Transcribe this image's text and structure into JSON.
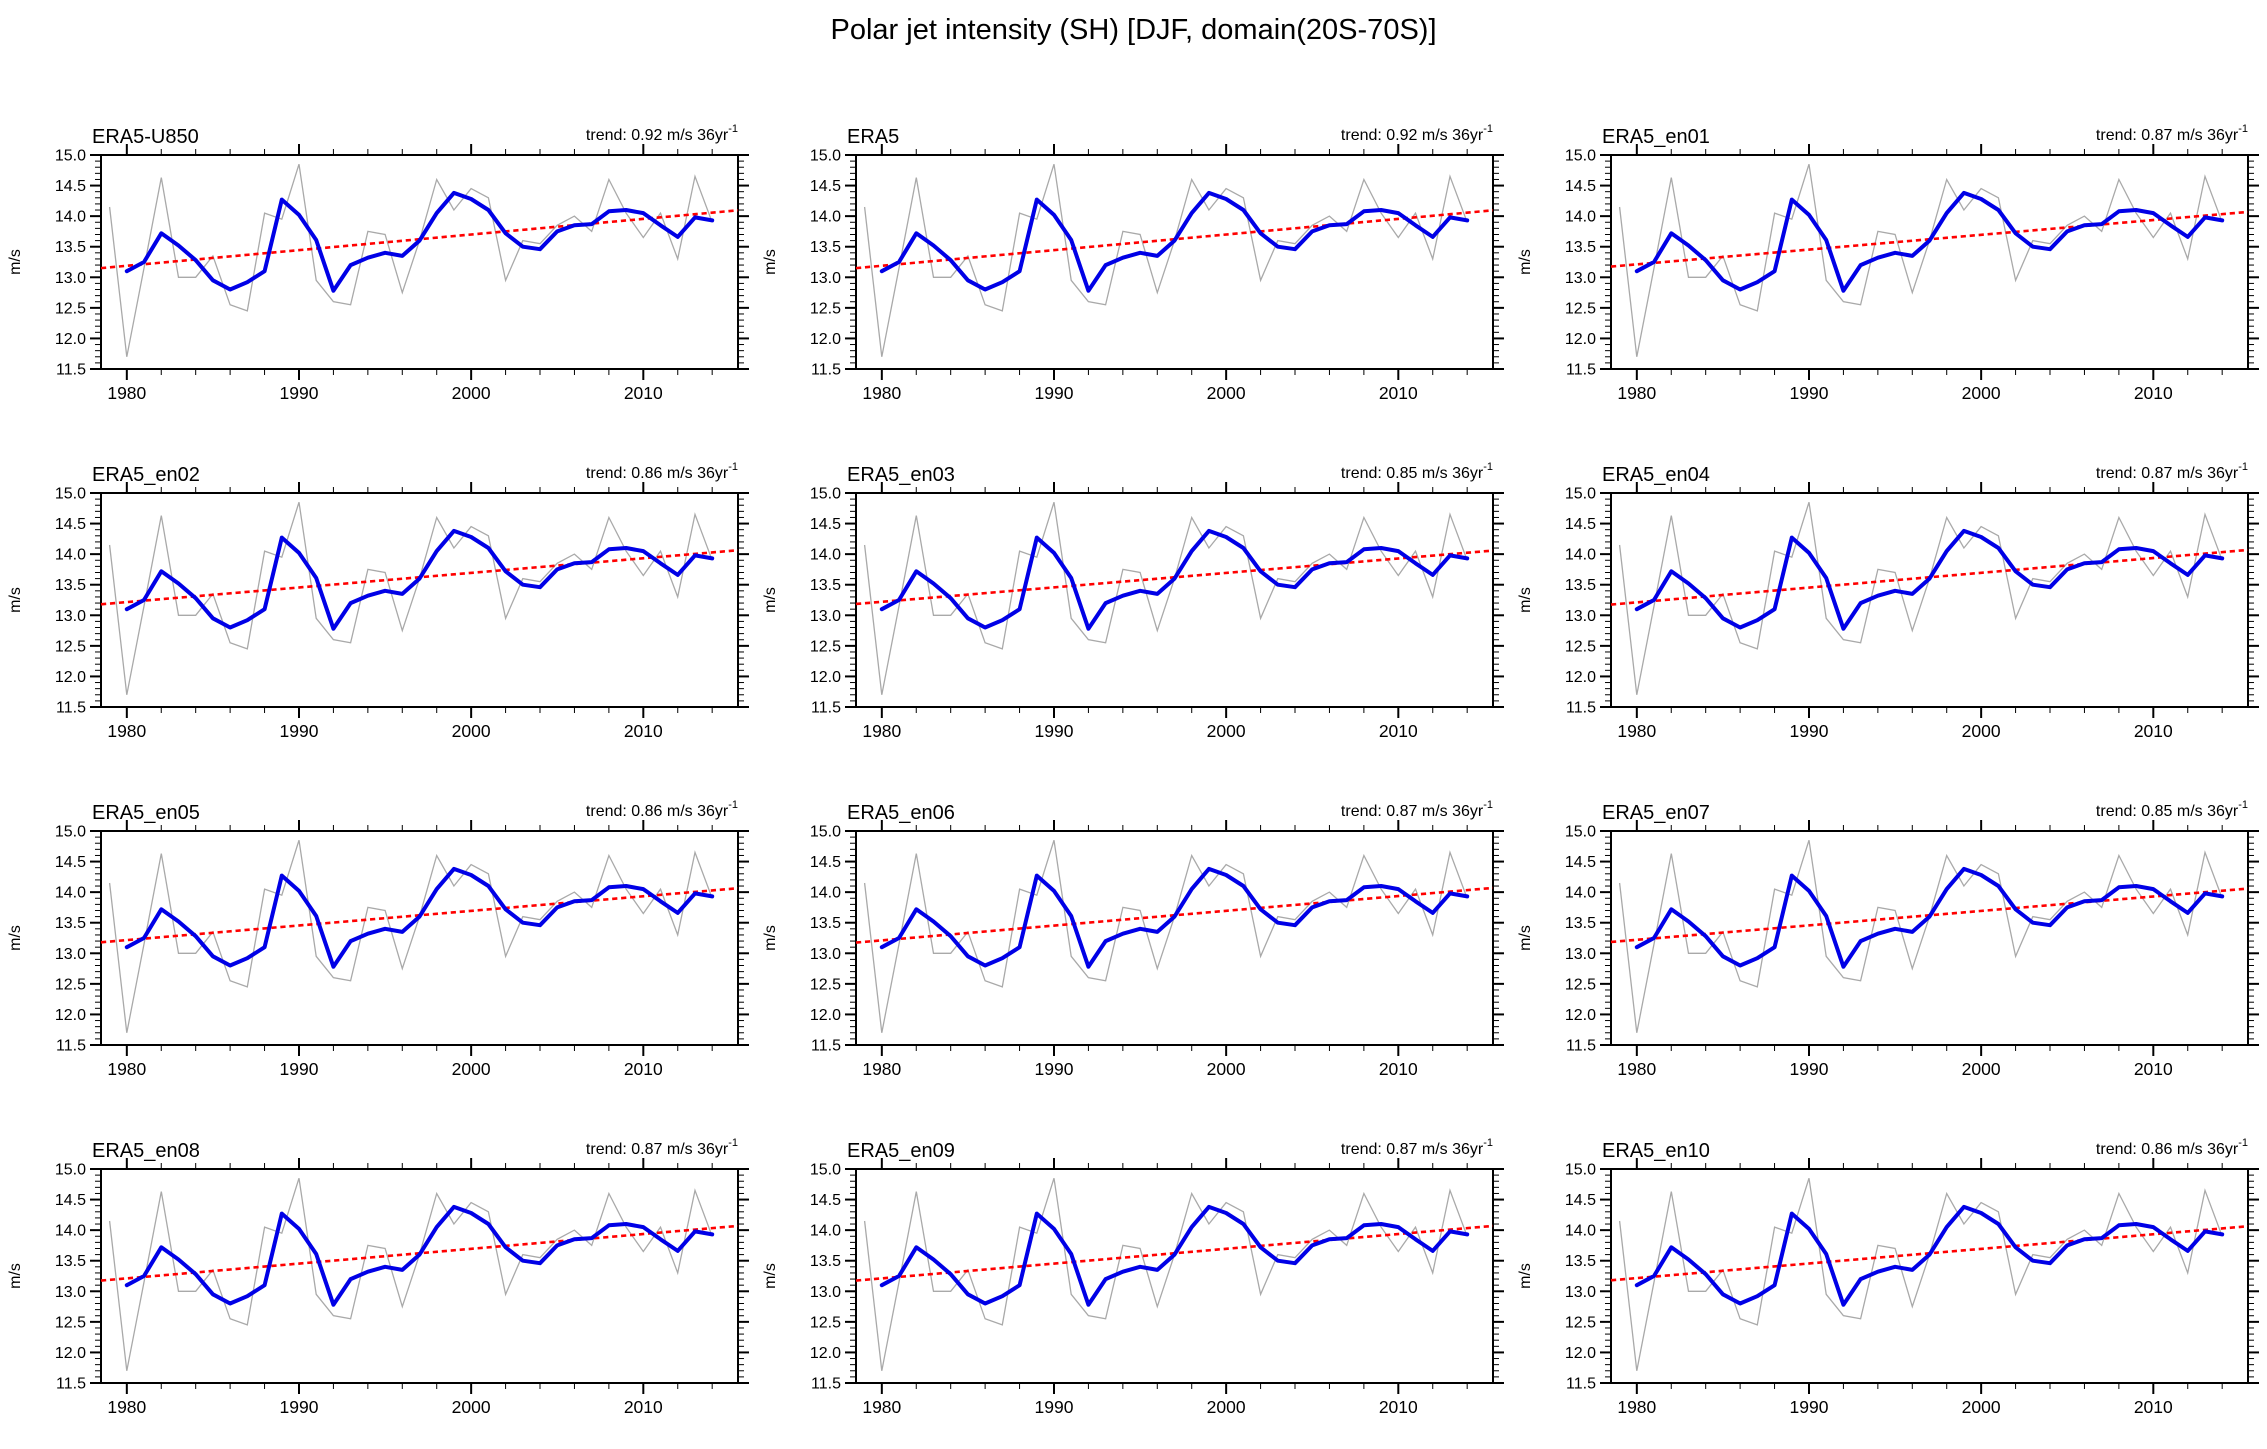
{
  "figure": {
    "title": "Polar jet intensity (SH) [DJF, domain(20S-70S)]"
  },
  "chart_data": {
    "type": "line",
    "layout": {
      "rows": 4,
      "cols": 3
    },
    "suptitle": "Polar jet intensity (SH) [DJF, domain(20S-70S)]",
    "ylabel": "m/s",
    "ylim": [
      11.5,
      15.0
    ],
    "xlim": [
      1978.5,
      2015.5
    ],
    "grid": false,
    "legend": "none",
    "y_major_ticks": [
      11.5,
      12.0,
      12.5,
      13.0,
      13.5,
      14.0,
      14.5,
      15.0
    ],
    "y_tick_labels": [
      "11.5",
      "12.0",
      "12.5",
      "13.0",
      "13.5",
      "14.0",
      "14.5",
      "15.0"
    ],
    "y_minor_step": 0.1,
    "x_major_ticks": [
      1980,
      1990,
      2000,
      2010
    ],
    "x_tick_labels": [
      "1980",
      "1990",
      "2000",
      "2010"
    ],
    "x_minor_step": 2,
    "series_colors": {
      "annual": "#A9A9A9",
      "smoothed": "#0000E6",
      "trend": "#FF0000"
    },
    "series_styles": {
      "annual": "thin solid",
      "smoothed": "thick solid",
      "trend": "dashed"
    },
    "years": [
      1979,
      1980,
      1981,
      1982,
      1983,
      1984,
      1985,
      1986,
      1987,
      1988,
      1989,
      1990,
      1991,
      1992,
      1993,
      1994,
      1995,
      1996,
      1997,
      1998,
      1999,
      2000,
      2001,
      2002,
      2003,
      2004,
      2005,
      2006,
      2007,
      2008,
      2009,
      2010,
      2011,
      2012,
      2013,
      2014
    ],
    "annual_raw": [
      14.15,
      11.7,
      13.15,
      14.63,
      13.0,
      13.0,
      13.35,
      12.55,
      12.45,
      14.05,
      13.95,
      14.85,
      12.95,
      12.6,
      12.55,
      13.75,
      13.7,
      12.75,
      13.6,
      14.6,
      14.1,
      14.45,
      14.3,
      12.95,
      13.6,
      13.55,
      13.85,
      14.0,
      13.75,
      14.6,
      14.05,
      13.65,
      14.05,
      13.3,
      14.65,
      13.9
    ],
    "smoothed_years": [
      1980,
      1981,
      1982,
      1983,
      1984,
      1985,
      1986,
      1987,
      1988,
      1989,
      1990,
      1991,
      1992,
      1993,
      1994,
      1995,
      1996,
      1997,
      1998,
      1999,
      2000,
      2001,
      2002,
      2003,
      2004,
      2005,
      2006,
      2007,
      2008,
      2009,
      2010,
      2011,
      2012,
      2013,
      2014
    ],
    "smoothed": [
      13.1,
      13.25,
      13.72,
      13.52,
      13.28,
      12.95,
      12.8,
      12.92,
      13.1,
      14.27,
      14.02,
      13.61,
      12.78,
      13.2,
      13.32,
      13.4,
      13.35,
      13.6,
      14.05,
      14.38,
      14.28,
      14.1,
      13.72,
      13.5,
      13.46,
      13.75,
      13.85,
      13.87,
      14.08,
      14.1,
      14.05,
      13.85,
      13.66,
      13.98,
      13.93
    ],
    "trend_anchor": {
      "year": 1996.5,
      "value": 13.61
    },
    "panels": [
      {
        "title": "ERA5-U850",
        "trend_label": "trend: 0.92 m/s 36yr",
        "trend_superscript": "-1",
        "trend_per_36yr": 0.92
      },
      {
        "title": "ERA5",
        "trend_label": "trend: 0.92 m/s 36yr",
        "trend_superscript": "-1",
        "trend_per_36yr": 0.92
      },
      {
        "title": "ERA5_en01",
        "trend_label": "trend: 0.87 m/s 36yr",
        "trend_superscript": "-1",
        "trend_per_36yr": 0.87
      },
      {
        "title": "ERA5_en02",
        "trend_label": "trend: 0.86 m/s 36yr",
        "trend_superscript": "-1",
        "trend_per_36yr": 0.86
      },
      {
        "title": "ERA5_en03",
        "trend_label": "trend: 0.85 m/s 36yr",
        "trend_superscript": "-1",
        "trend_per_36yr": 0.85
      },
      {
        "title": "ERA5_en04",
        "trend_label": "trend: 0.87 m/s 36yr",
        "trend_superscript": "-1",
        "trend_per_36yr": 0.87
      },
      {
        "title": "ERA5_en05",
        "trend_label": "trend: 0.86 m/s 36yr",
        "trend_superscript": "-1",
        "trend_per_36yr": 0.86
      },
      {
        "title": "ERA5_en06",
        "trend_label": "trend: 0.87 m/s 36yr",
        "trend_superscript": "-1",
        "trend_per_36yr": 0.87
      },
      {
        "title": "ERA5_en07",
        "trend_label": "trend: 0.85 m/s 36yr",
        "trend_superscript": "-1",
        "trend_per_36yr": 0.85
      },
      {
        "title": "ERA5_en08",
        "trend_label": "trend: 0.87 m/s 36yr",
        "trend_superscript": "-1",
        "trend_per_36yr": 0.87
      },
      {
        "title": "ERA5_en09",
        "trend_label": "trend: 0.87 m/s 36yr",
        "trend_superscript": "-1",
        "trend_per_36yr": 0.87
      },
      {
        "title": "ERA5_en10",
        "trend_label": "trend: 0.86 m/s 36yr",
        "trend_superscript": "-1",
        "trend_per_36yr": 0.86
      }
    ]
  }
}
